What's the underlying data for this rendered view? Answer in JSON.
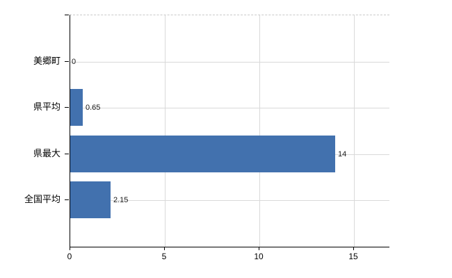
{
  "chart_data": {
    "type": "bar",
    "orientation": "horizontal",
    "title": "",
    "xlabel": "",
    "ylabel": "",
    "categories": [
      "美郷町",
      "県平均",
      "県最大",
      "全国平均"
    ],
    "values": [
      0,
      0.65,
      14,
      2.15
    ],
    "value_labels": [
      "0",
      "0.65",
      "14",
      "2.15"
    ],
    "xticks": [
      0,
      5,
      10,
      15
    ],
    "xtick_labels": [
      "0",
      "5",
      "10",
      "15"
    ],
    "xlim": [
      0,
      16.9
    ],
    "grid": "on",
    "legend": "none",
    "bar_color": "#4271ae",
    "gridline_color": "#d9d9d9",
    "axis_color": "#000000",
    "label_color": "#1a1a1a",
    "background_color": "#ffffff"
  }
}
